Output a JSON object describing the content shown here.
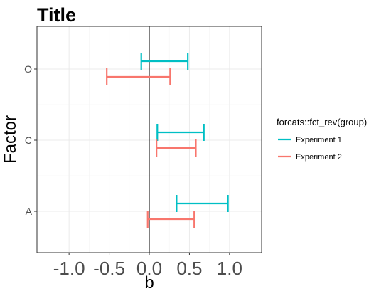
{
  "chart_data": {
    "type": "errorbar",
    "title": "Title",
    "xlabel": "b",
    "ylabel": "Factor",
    "xlim": [
      -1.4,
      1.4
    ],
    "x_ticks": [
      -1.0,
      -0.5,
      0.0,
      0.5,
      1.0
    ],
    "x_tick_labels": [
      "-1.0",
      "-0.5",
      "0.0",
      "0.5",
      "1.0"
    ],
    "categories": [
      "O",
      "C",
      "A"
    ],
    "reference_line_x": 0,
    "grid": true,
    "legend": {
      "title": "forcats::fct_rev(group)",
      "position": "right"
    },
    "series": [
      {
        "name": "Experiment 1",
        "color": "#00BFC4",
        "intervals": [
          {
            "category": "O",
            "low": -0.1,
            "high": 0.48
          },
          {
            "category": "C",
            "low": 0.1,
            "high": 0.68
          },
          {
            "category": "A",
            "low": 0.34,
            "high": 0.98
          }
        ]
      },
      {
        "name": "Experiment 2",
        "color": "#F8766D",
        "intervals": [
          {
            "category": "O",
            "low": -0.53,
            "high": 0.26
          },
          {
            "category": "C",
            "low": 0.09,
            "high": 0.58
          },
          {
            "category": "A",
            "low": -0.02,
            "high": 0.56
          }
        ]
      }
    ]
  }
}
